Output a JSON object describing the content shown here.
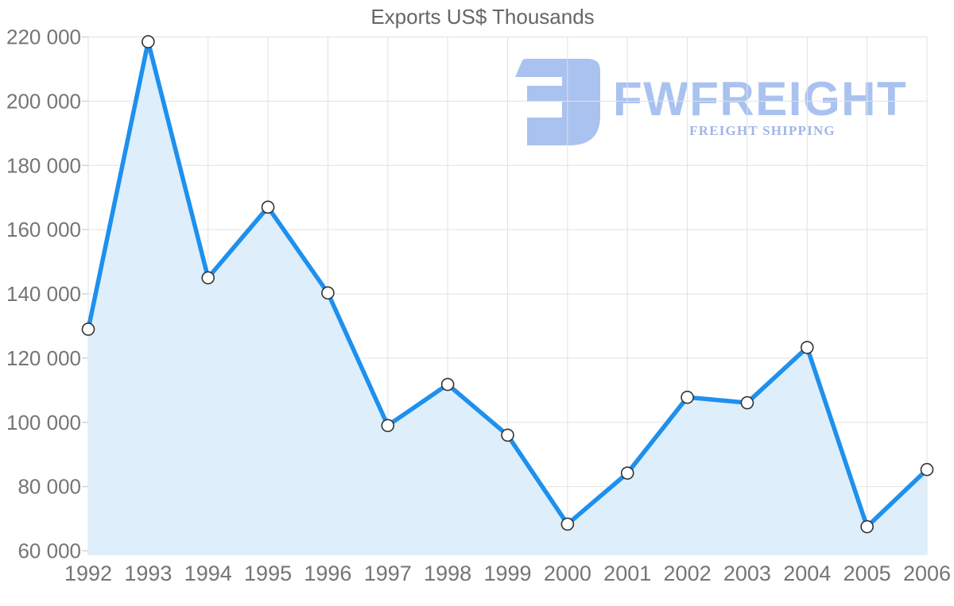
{
  "title": "Exports US$ Thousands",
  "watermark": {
    "brand": "FWFREIGHT",
    "tagline": "FREIGHT SHIPPING",
    "icon": "fwfreight-logo-mark",
    "color": "#a9c2ef",
    "tagline_color": "#9fb5e6"
  },
  "colors": {
    "line": "#1e90ee",
    "area_fill": "#deeefa",
    "grid": "#e2e2e2",
    "tick_stub": "#d5d5d5",
    "tick_text": "#757575",
    "title_text": "#666666",
    "marker_fill": "#ffffff",
    "marker_stroke": "#333333"
  },
  "chart_data": {
    "type": "area",
    "title": "Exports US$ Thousands",
    "xlabel": "",
    "ylabel": "",
    "x": [
      1992,
      1993,
      1994,
      1995,
      1996,
      1997,
      1998,
      1999,
      2000,
      2001,
      2002,
      2003,
      2004,
      2005,
      2006
    ],
    "values": [
      129000,
      218500,
      145000,
      167000,
      140300,
      99000,
      111800,
      96000,
      68300,
      84200,
      107800,
      106100,
      123300,
      67500,
      85300
    ],
    "series_name": "Exports (US$ thousands)",
    "ylim": [
      60000,
      220000
    ],
    "ytick_step": 20000,
    "ytick_labels": [
      "60 000",
      "80 000",
      "100 000",
      "120 000",
      "140 000",
      "160 000",
      "180 000",
      "200 000",
      "220 000"
    ],
    "grid": true,
    "legend_position": "none",
    "marker": "circle-white",
    "number_format": "space-thousands"
  }
}
